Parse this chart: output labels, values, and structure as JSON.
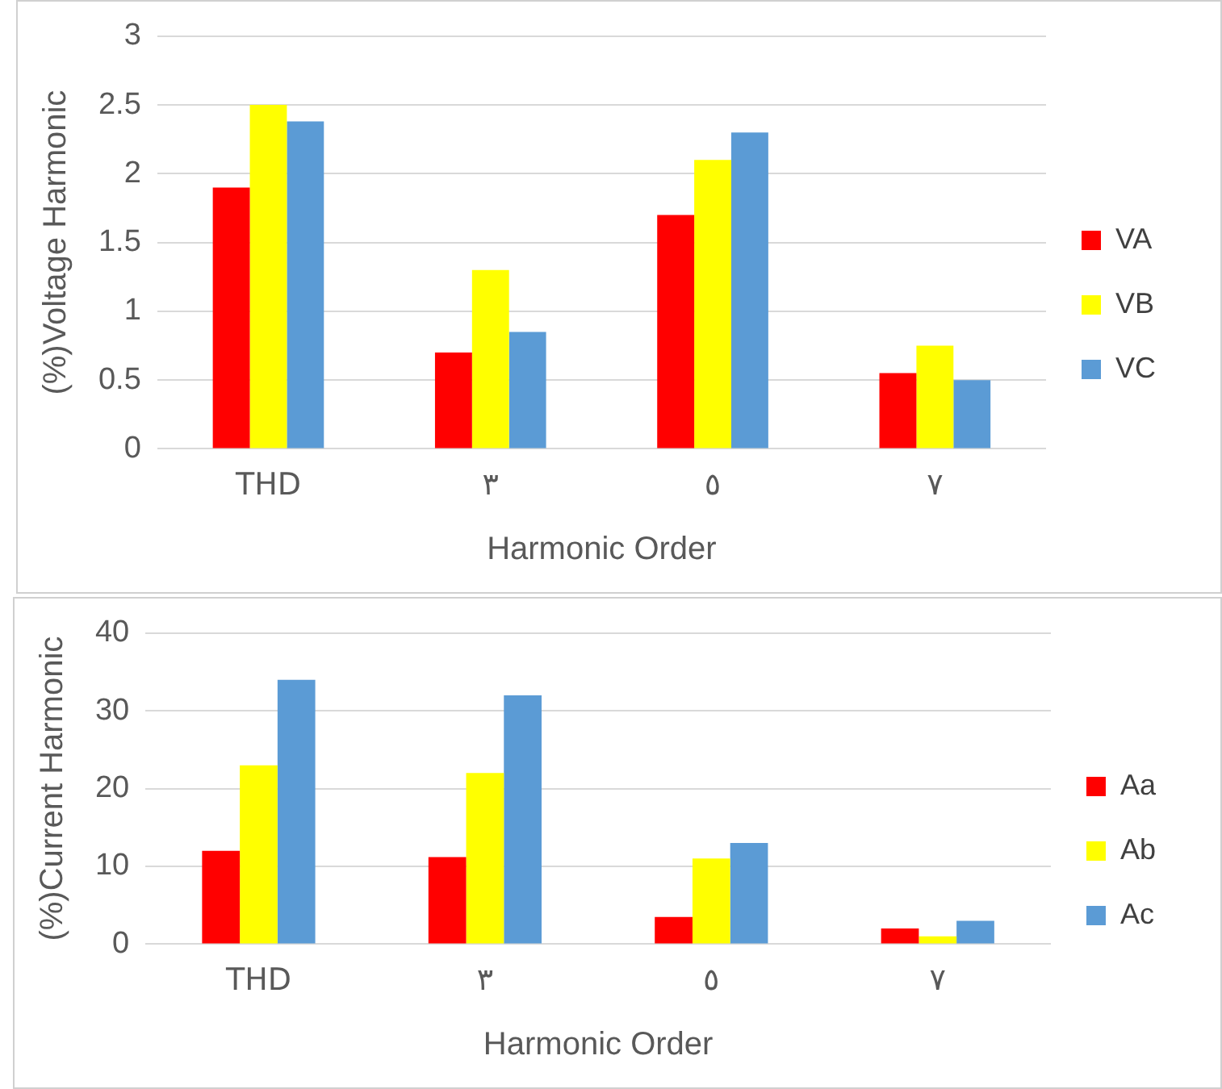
{
  "chart_data": [
    {
      "type": "bar",
      "xlabel": "Harmonic Order",
      "ylabel": "(%)Voltage Harmonic",
      "categories": [
        "THD",
        "٣",
        "٥",
        "٧"
      ],
      "series": [
        {
          "name": "VA",
          "color": "#ff0000",
          "values": [
            1.9,
            0.7,
            1.7,
            0.55
          ]
        },
        {
          "name": "VB",
          "color": "#ffff00",
          "values": [
            2.5,
            1.3,
            2.1,
            0.75
          ]
        },
        {
          "name": "VC",
          "color": "#5b9bd5",
          "values": [
            2.38,
            0.85,
            2.3,
            0.5
          ]
        }
      ],
      "ylim": [
        0,
        3
      ],
      "yticks": [
        0,
        0.5,
        1,
        1.5,
        2,
        2.5,
        3
      ],
      "grid": "y",
      "legend": "right"
    },
    {
      "type": "bar",
      "xlabel": "Harmonic Order",
      "ylabel": "(%)Current Harmonic",
      "categories": [
        "THD",
        "٣",
        "٥",
        "٧"
      ],
      "series": [
        {
          "name": "Aa",
          "color": "#ff0000",
          "values": [
            12,
            11.2,
            3.5,
            2
          ]
        },
        {
          "name": "Ab",
          "color": "#ffff00",
          "values": [
            23,
            22,
            11,
            1
          ]
        },
        {
          "name": "Ac",
          "color": "#5b9bd5",
          "values": [
            34,
            32,
            13,
            3
          ]
        }
      ],
      "ylim": [
        0,
        40
      ],
      "yticks": [
        0,
        10,
        20,
        30,
        40
      ],
      "grid": "y",
      "legend": "right"
    }
  ]
}
